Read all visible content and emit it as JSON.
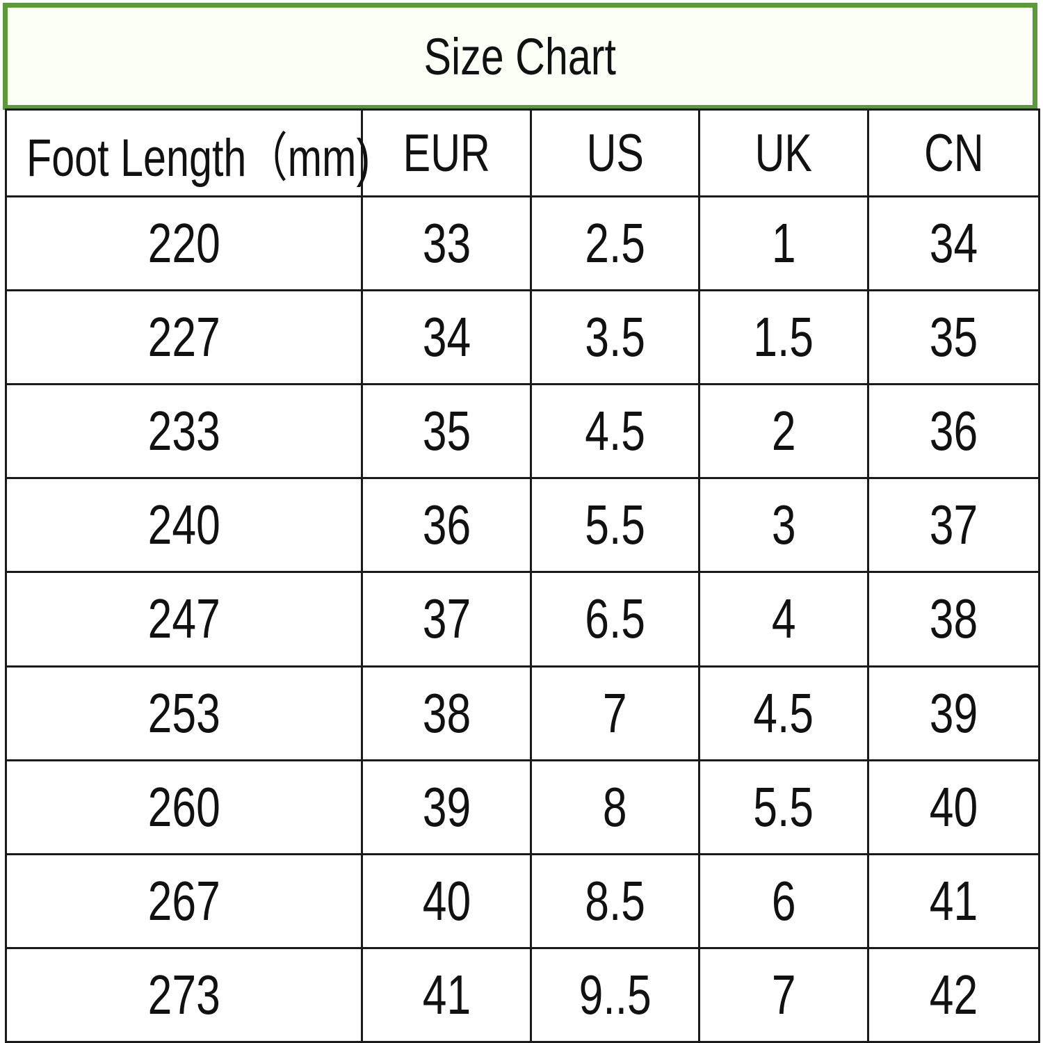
{
  "title": "Size Chart",
  "colors": {
    "title_border": "#5b9a3a",
    "grid": "#1a1a1a"
  },
  "table": {
    "headers": [
      "Foot Length（mm)",
      "EUR",
      "US",
      "UK",
      "CN"
    ],
    "rows": [
      [
        "220",
        "33",
        "2.5",
        "1",
        "34"
      ],
      [
        "227",
        "34",
        "3.5",
        "1.5",
        "35"
      ],
      [
        "233",
        "35",
        "4.5",
        "2",
        "36"
      ],
      [
        "240",
        "36",
        "5.5",
        "3",
        "37"
      ],
      [
        "247",
        "37",
        "6.5",
        "4",
        "38"
      ],
      [
        "253",
        "38",
        "7",
        "4.5",
        "39"
      ],
      [
        "260",
        "39",
        "8",
        "5.5",
        "40"
      ],
      [
        "267",
        "40",
        "8.5",
        "6",
        "41"
      ],
      [
        "273",
        "41",
        "9..5",
        "7",
        "42"
      ]
    ]
  }
}
